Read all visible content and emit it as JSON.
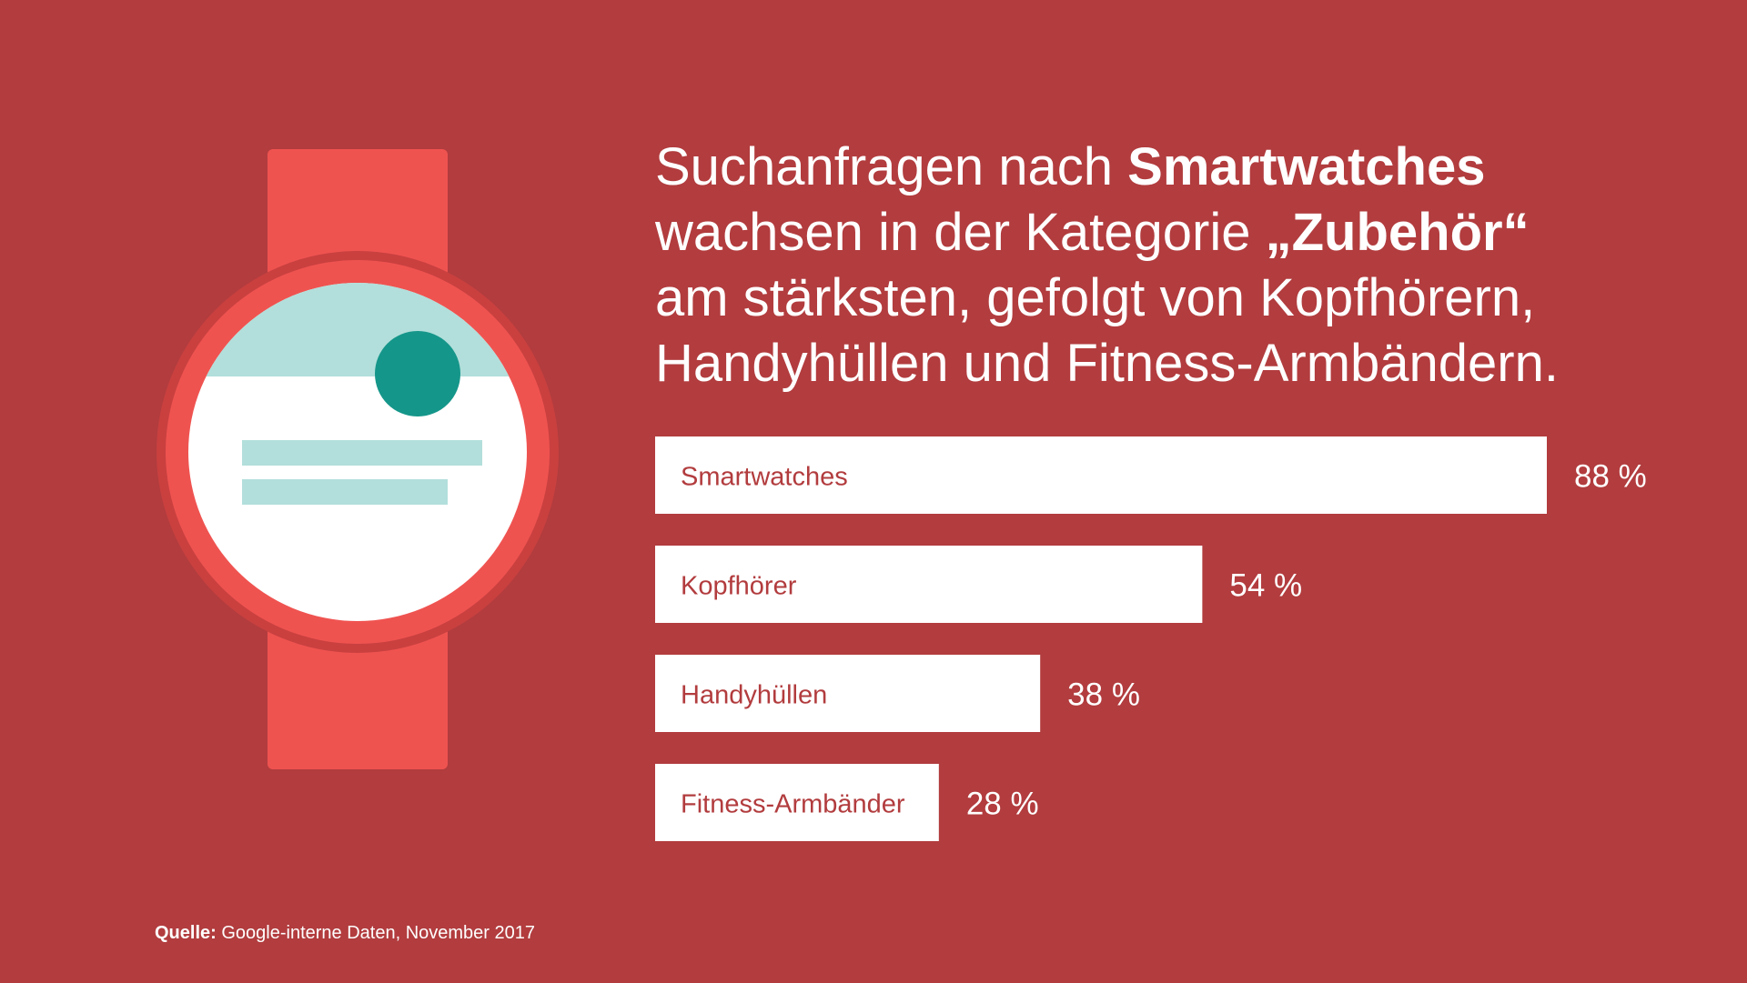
{
  "headline": {
    "line1_pre": "Suchanfragen nach ",
    "line1_bold": "Smartwatches",
    "line2_pre": "wachsen in der Kategorie ",
    "line2_bold": "„Zubehör“",
    "line3": "am stärksten, gefolgt von Kopfhörern,",
    "line4": "Handyhüllen und Fitness-Armbändern."
  },
  "chart_data": {
    "type": "bar",
    "orientation": "horizontal",
    "categories": [
      "Smartwatches",
      "Kopfhörer",
      "Handyhüllen",
      "Fitness-Armbänder"
    ],
    "values": [
      88,
      54,
      38,
      28
    ],
    "value_labels": [
      "88 %",
      "54 %",
      "38 %",
      "28 %"
    ],
    "title": "",
    "xlabel": "",
    "ylabel": "",
    "xlim": [
      0,
      100
    ],
    "grid": false,
    "legend": "none"
  },
  "source": {
    "label": "Quelle:",
    "text": " Google-interne Daten, November 2017"
  },
  "colors": {
    "background": "#B23C3E",
    "bar": "#FFFFFF",
    "bar_label": "#B23C3E",
    "watch_body": "#EF5350",
    "watch_screen_top": "#B2DFDB",
    "watch_dot": "#15968A"
  },
  "illustration": {
    "icon": "smartwatch-icon"
  }
}
